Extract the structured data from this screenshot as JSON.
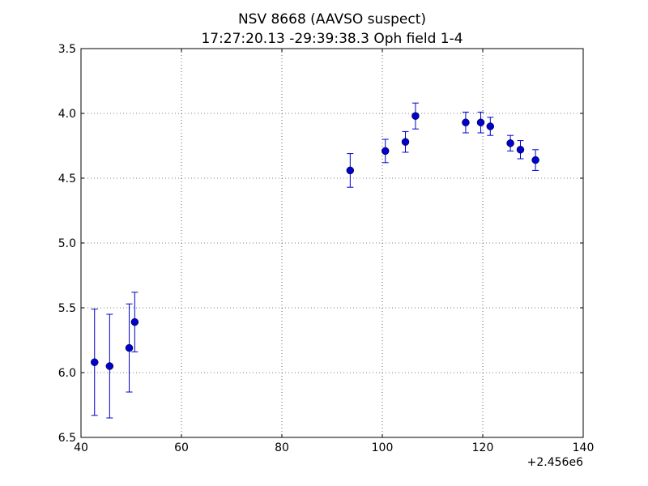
{
  "chart_data": {
    "type": "scatter",
    "title_line1": "NSV 8668 (AAVSO suspect)",
    "title_line2": "17:27:20.13 -29:39:38.3 Oph field 1-4",
    "xlabel": "",
    "ylabel": "",
    "x_offset_label": "+2.456e6",
    "xlim": [
      40,
      140
    ],
    "ylim": [
      3.5,
      6.5
    ],
    "y_inverted": true,
    "grid": true,
    "x_ticks": [
      40,
      60,
      80,
      100,
      120,
      140
    ],
    "x_tick_labels": [
      "40",
      "60",
      "80",
      "100",
      "120",
      "140"
    ],
    "y_ticks": [
      3.5,
      4.0,
      4.5,
      5.0,
      5.5,
      6.0,
      6.5
    ],
    "y_tick_labels": [
      "3.5",
      "4.0",
      "4.5",
      "5.0",
      "5.5",
      "6.0",
      "6.5"
    ],
    "marker_color": "#0000cc",
    "errorbar_color": "#0000cc",
    "points": [
      {
        "x": 42.7,
        "y": 5.92,
        "err": 0.41
      },
      {
        "x": 45.7,
        "y": 5.95,
        "err": 0.4
      },
      {
        "x": 49.6,
        "y": 5.81,
        "err": 0.34
      },
      {
        "x": 50.7,
        "y": 5.61,
        "err": 0.23
      },
      {
        "x": 93.6,
        "y": 4.44,
        "err": 0.13
      },
      {
        "x": 100.6,
        "y": 4.29,
        "err": 0.09
      },
      {
        "x": 104.6,
        "y": 4.22,
        "err": 0.08
      },
      {
        "x": 106.6,
        "y": 4.02,
        "err": 0.1
      },
      {
        "x": 116.6,
        "y": 4.07,
        "err": 0.08
      },
      {
        "x": 119.6,
        "y": 4.07,
        "err": 0.08
      },
      {
        "x": 121.5,
        "y": 4.1,
        "err": 0.07
      },
      {
        "x": 125.5,
        "y": 4.23,
        "err": 0.06
      },
      {
        "x": 127.5,
        "y": 4.28,
        "err": 0.07
      },
      {
        "x": 130.5,
        "y": 4.36,
        "err": 0.08
      }
    ]
  }
}
